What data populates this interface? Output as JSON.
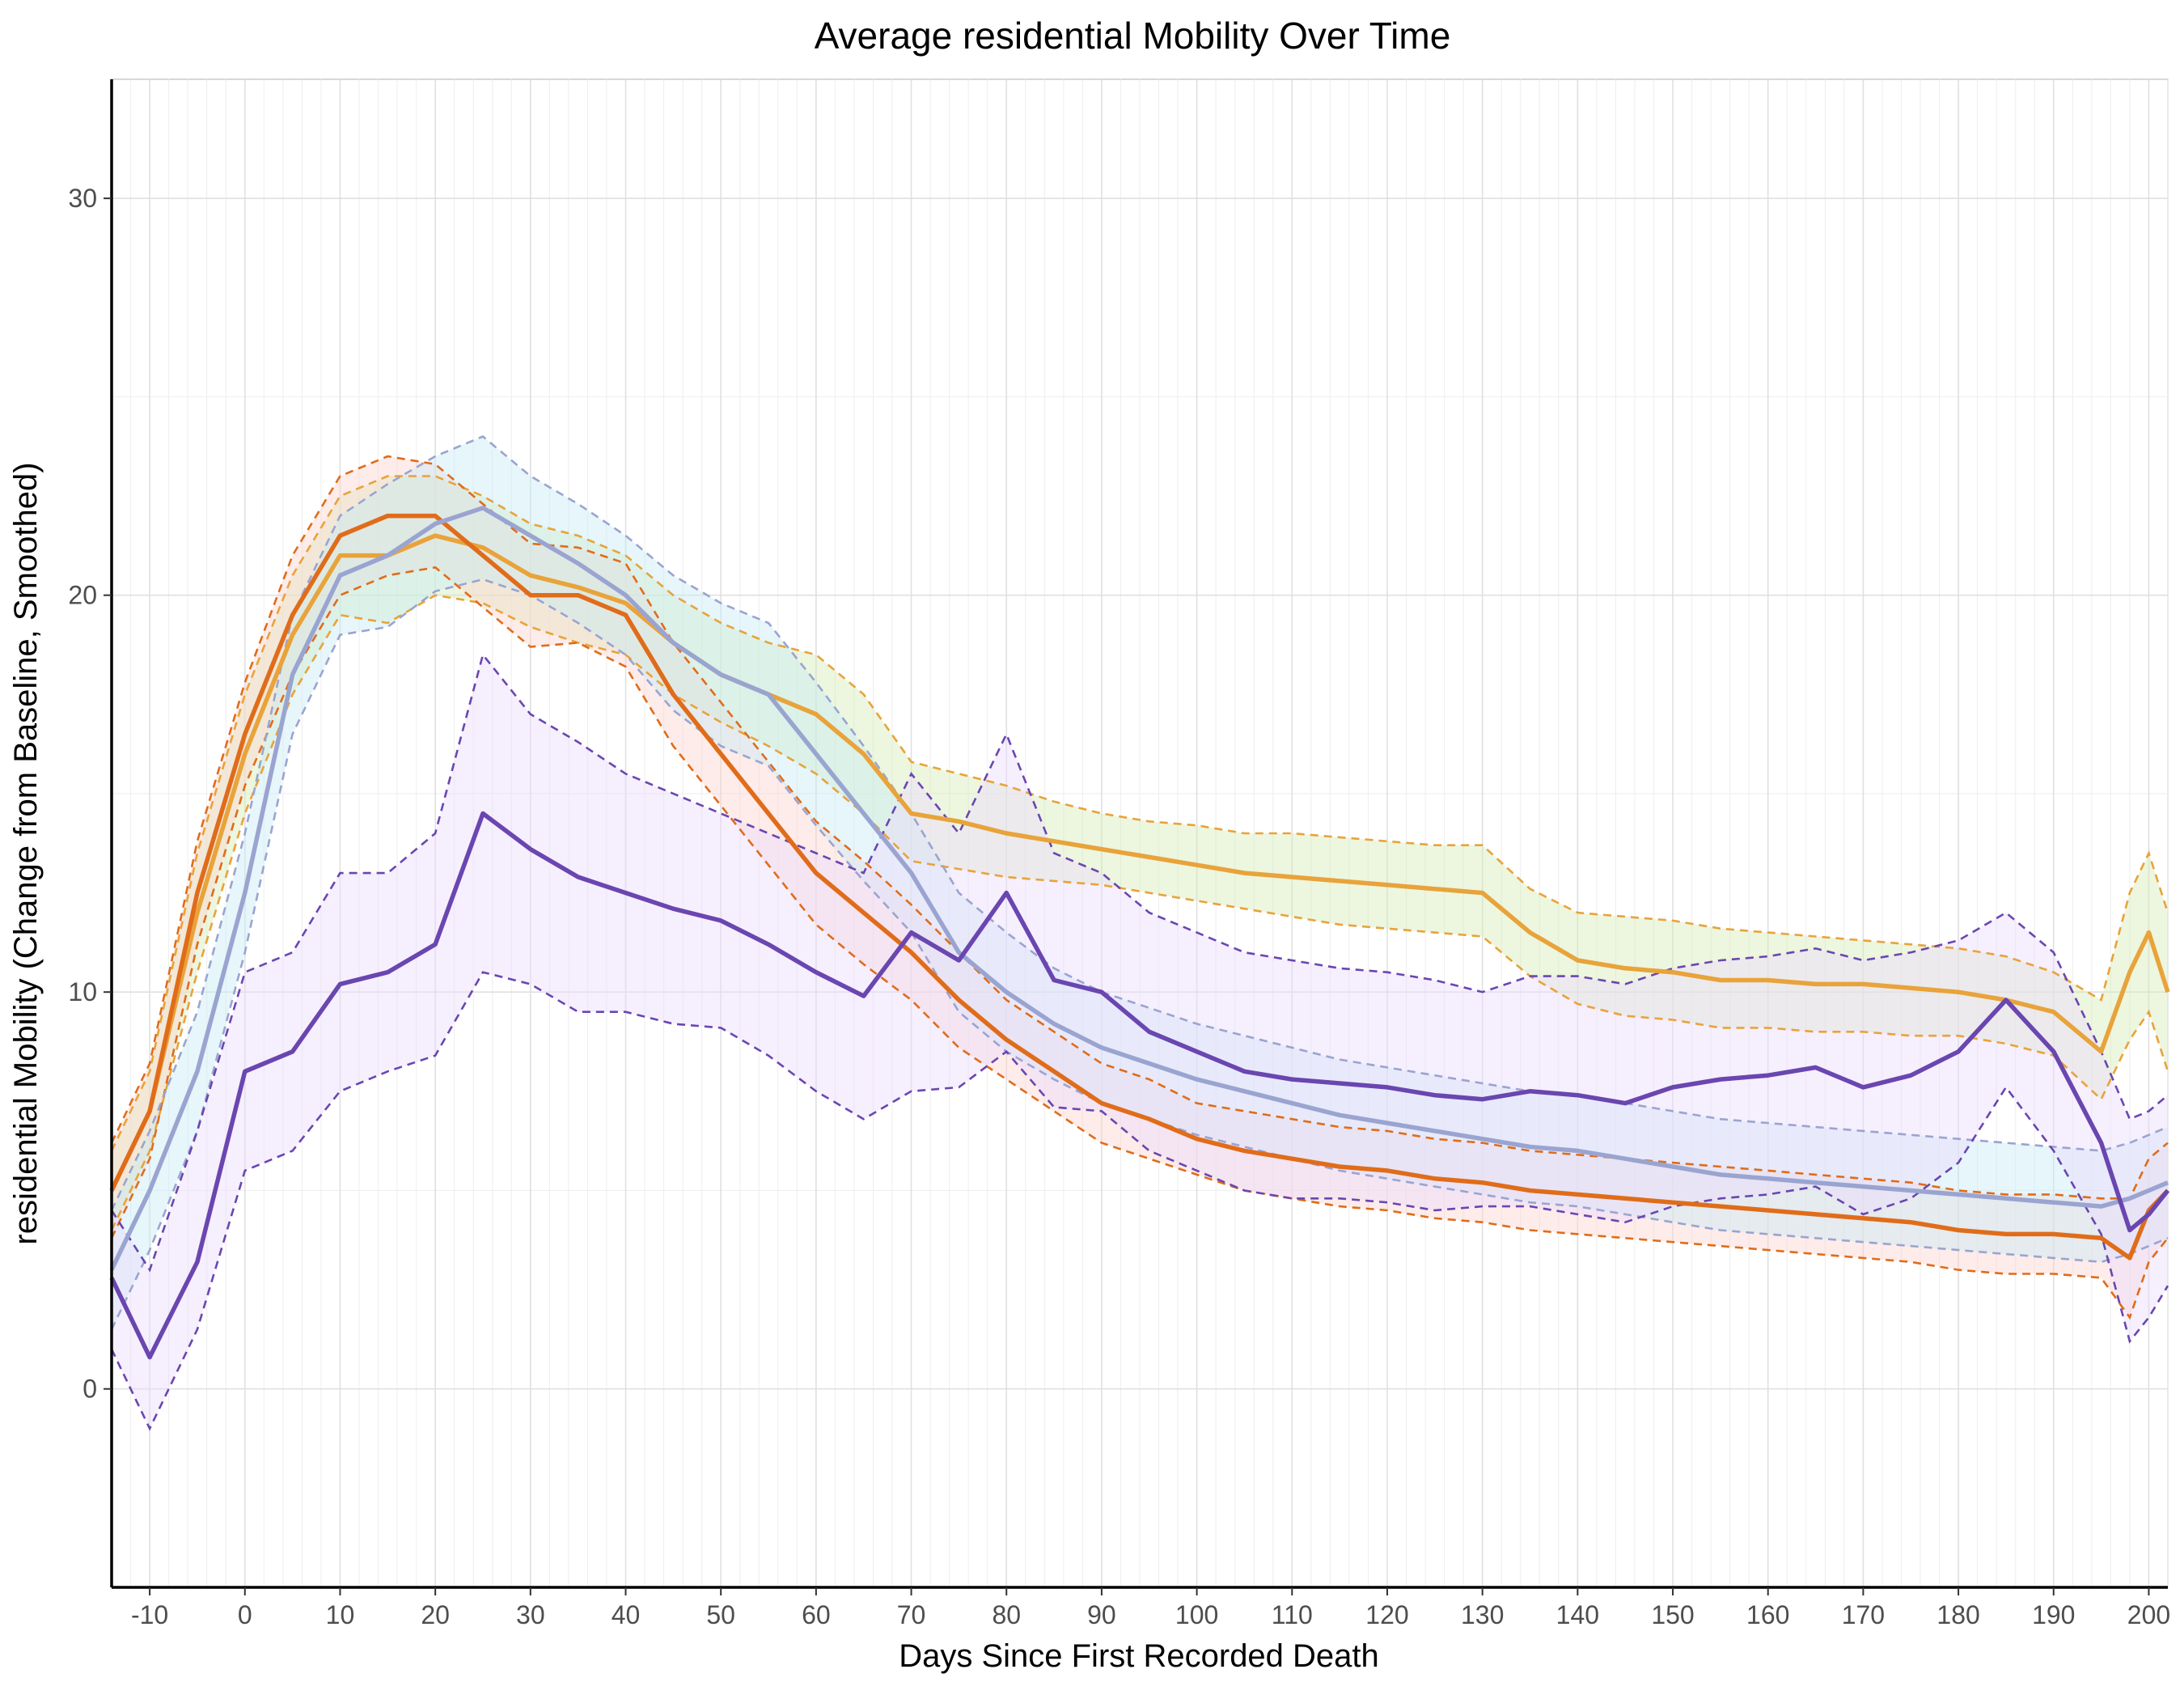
{
  "chart_data": {
    "type": "line",
    "title": "Average residential Mobility Over Time",
    "xlabel": "Days Since First Recorded Death",
    "ylabel": "residential Mobility (Change from Baseline, Smoothed)",
    "xlim": [
      -14,
      202
    ],
    "ylim": [
      -5,
      33
    ],
    "x_ticks": [
      -10,
      0,
      10,
      20,
      30,
      40,
      50,
      60,
      70,
      80,
      90,
      100,
      110,
      120,
      130,
      140,
      150,
      160,
      170,
      180,
      190,
      200
    ],
    "x_tick_labels": [
      "-10",
      "0",
      "10",
      "20",
      "30",
      "40",
      "50",
      "60",
      "70",
      "80",
      "90",
      "100",
      "110",
      "120",
      "130",
      "140",
      "150",
      "160",
      "170",
      "180",
      "190",
      "200"
    ],
    "y_ticks": [
      0,
      10,
      20,
      30
    ],
    "y_tick_labels": [
      "0",
      "10",
      "20",
      "30"
    ],
    "grid": true,
    "legend": "none",
    "series": [
      {
        "color": "#e8a33a",
        "band_fill": "#d8ecb8",
        "x": [
          -14,
          -10,
          -5,
          0,
          5,
          10,
          15,
          20,
          25,
          30,
          35,
          40,
          45,
          50,
          55,
          60,
          65,
          70,
          75,
          80,
          85,
          90,
          95,
          100,
          105,
          110,
          115,
          120,
          125,
          130,
          135,
          140,
          145,
          150,
          155,
          160,
          165,
          170,
          175,
          180,
          185,
          190,
          195,
          198,
          200,
          202
        ],
        "mean": [
          5.0,
          7.0,
          12.0,
          16.0,
          19.0,
          21.0,
          21.0,
          21.5,
          21.2,
          20.5,
          20.2,
          19.8,
          18.8,
          18.0,
          17.5,
          17.0,
          16.0,
          14.5,
          14.3,
          14.0,
          13.8,
          13.6,
          13.4,
          13.2,
          13.0,
          12.9,
          12.8,
          12.7,
          12.6,
          12.5,
          11.5,
          10.8,
          10.6,
          10.5,
          10.3,
          10.3,
          10.2,
          10.2,
          10.1,
          10.0,
          9.8,
          9.5,
          8.5,
          10.5,
          11.5,
          10.0
        ],
        "upper": [
          6.0,
          8.0,
          13.5,
          17.5,
          20.5,
          22.5,
          23.0,
          23.0,
          22.5,
          21.8,
          21.5,
          21.0,
          20.0,
          19.3,
          18.8,
          18.5,
          17.5,
          15.8,
          15.5,
          15.2,
          14.8,
          14.5,
          14.3,
          14.2,
          14.0,
          14.0,
          13.9,
          13.8,
          13.7,
          13.7,
          12.6,
          12.0,
          11.9,
          11.8,
          11.6,
          11.5,
          11.4,
          11.3,
          11.2,
          11.1,
          10.9,
          10.5,
          9.8,
          12.5,
          13.5,
          12.0
        ],
        "lower": [
          4.0,
          6.0,
          10.5,
          14.5,
          17.5,
          19.5,
          19.3,
          20.0,
          19.8,
          19.2,
          18.8,
          18.5,
          17.5,
          16.8,
          16.2,
          15.5,
          14.5,
          13.3,
          13.1,
          12.9,
          12.8,
          12.7,
          12.5,
          12.3,
          12.1,
          11.9,
          11.7,
          11.6,
          11.5,
          11.4,
          10.4,
          9.7,
          9.4,
          9.3,
          9.1,
          9.1,
          9.0,
          9.0,
          8.9,
          8.9,
          8.7,
          8.4,
          7.3,
          8.8,
          9.5,
          8.0
        ]
      },
      {
        "color": "#e06c1a",
        "band_fill": "#fbd5cf",
        "x": [
          -14,
          -10,
          -5,
          0,
          5,
          10,
          15,
          20,
          25,
          30,
          35,
          40,
          45,
          50,
          55,
          60,
          65,
          70,
          75,
          80,
          85,
          90,
          95,
          100,
          105,
          110,
          115,
          120,
          125,
          130,
          135,
          140,
          145,
          150,
          155,
          160,
          165,
          170,
          175,
          180,
          185,
          190,
          195,
          198,
          200,
          202
        ],
        "mean": [
          5.0,
          7.0,
          12.5,
          16.5,
          19.5,
          21.5,
          22.0,
          22.0,
          21.0,
          20.0,
          20.0,
          19.5,
          17.5,
          16.0,
          14.5,
          13.0,
          12.0,
          11.0,
          9.8,
          8.8,
          8.0,
          7.2,
          6.8,
          6.3,
          6.0,
          5.8,
          5.6,
          5.5,
          5.3,
          5.2,
          5.0,
          4.9,
          4.8,
          4.7,
          4.6,
          4.5,
          4.4,
          4.3,
          4.2,
          4.0,
          3.9,
          3.9,
          3.8,
          3.3,
          4.5,
          5.0
        ],
        "upper": [
          6.2,
          8.2,
          13.8,
          17.8,
          21.0,
          23.0,
          23.5,
          23.3,
          22.3,
          21.3,
          21.2,
          20.8,
          18.8,
          17.3,
          15.8,
          14.3,
          13.3,
          12.2,
          11.0,
          9.8,
          9.0,
          8.2,
          7.8,
          7.2,
          7.0,
          6.8,
          6.6,
          6.5,
          6.3,
          6.2,
          6.0,
          5.9,
          5.8,
          5.7,
          5.6,
          5.5,
          5.4,
          5.3,
          5.2,
          5.0,
          4.9,
          4.9,
          4.8,
          4.8,
          5.8,
          6.2
        ],
        "lower": [
          3.8,
          5.8,
          11.2,
          15.2,
          18.0,
          20.0,
          20.5,
          20.7,
          19.7,
          18.7,
          18.8,
          18.2,
          16.2,
          14.7,
          13.2,
          11.7,
          10.7,
          9.8,
          8.6,
          7.8,
          7.0,
          6.2,
          5.8,
          5.4,
          5.0,
          4.8,
          4.6,
          4.5,
          4.3,
          4.2,
          4.0,
          3.9,
          3.8,
          3.7,
          3.6,
          3.5,
          3.4,
          3.3,
          3.2,
          3.0,
          2.9,
          2.9,
          2.8,
          1.8,
          3.2,
          3.8
        ]
      },
      {
        "color": "#9aa4d0",
        "band_fill": "#c7ecf4",
        "x": [
          -14,
          -10,
          -5,
          0,
          5,
          10,
          15,
          20,
          25,
          30,
          35,
          40,
          45,
          50,
          55,
          60,
          65,
          70,
          75,
          80,
          85,
          90,
          95,
          100,
          105,
          110,
          115,
          120,
          125,
          130,
          135,
          140,
          145,
          150,
          155,
          160,
          165,
          170,
          175,
          180,
          185,
          190,
          195,
          198,
          200,
          202
        ],
        "mean": [
          3.0,
          5.0,
          8.0,
          12.5,
          18.0,
          20.5,
          21.0,
          21.8,
          22.2,
          21.5,
          20.8,
          20.0,
          18.8,
          18.0,
          17.5,
          16.0,
          14.5,
          13.0,
          11.0,
          10.0,
          9.2,
          8.6,
          8.2,
          7.8,
          7.5,
          7.2,
          6.9,
          6.7,
          6.5,
          6.3,
          6.1,
          6.0,
          5.8,
          5.6,
          5.4,
          5.3,
          5.2,
          5.1,
          5.0,
          4.9,
          4.8,
          4.7,
          4.6,
          4.8,
          5.0,
          5.2
        ],
        "upper": [
          4.5,
          6.5,
          9.5,
          14.0,
          19.5,
          22.0,
          22.8,
          23.5,
          24.0,
          23.0,
          22.3,
          21.5,
          20.5,
          19.8,
          19.3,
          17.8,
          16.2,
          14.5,
          12.5,
          11.5,
          10.6,
          10.0,
          9.6,
          9.2,
          8.9,
          8.6,
          8.3,
          8.1,
          7.9,
          7.7,
          7.5,
          7.4,
          7.2,
          7.0,
          6.8,
          6.7,
          6.6,
          6.5,
          6.4,
          6.3,
          6.2,
          6.1,
          6.0,
          6.2,
          6.4,
          6.6
        ],
        "lower": [
          1.5,
          3.5,
          6.5,
          11.0,
          16.5,
          19.0,
          19.2,
          20.1,
          20.4,
          20.0,
          19.3,
          18.5,
          17.1,
          16.2,
          15.7,
          14.2,
          12.8,
          11.5,
          9.5,
          8.5,
          7.8,
          7.2,
          6.8,
          6.4,
          6.1,
          5.8,
          5.5,
          5.3,
          5.1,
          4.9,
          4.7,
          4.6,
          4.4,
          4.2,
          4.0,
          3.9,
          3.8,
          3.7,
          3.6,
          3.5,
          3.4,
          3.3,
          3.2,
          3.4,
          3.6,
          3.8
        ]
      },
      {
        "color": "#6a46b0",
        "band_fill": "#ecdcfc",
        "x": [
          -14,
          -10,
          -5,
          0,
          5,
          10,
          15,
          20,
          25,
          30,
          35,
          40,
          45,
          50,
          55,
          60,
          65,
          70,
          75,
          80,
          85,
          90,
          95,
          100,
          105,
          110,
          115,
          120,
          125,
          130,
          135,
          140,
          145,
          150,
          155,
          160,
          165,
          170,
          175,
          180,
          185,
          190,
          195,
          198,
          200,
          202
        ],
        "mean": [
          2.8,
          0.8,
          3.2,
          8.0,
          8.5,
          10.2,
          10.5,
          11.2,
          14.5,
          13.6,
          12.9,
          12.5,
          12.1,
          11.8,
          11.2,
          10.5,
          9.9,
          11.5,
          10.8,
          12.5,
          10.3,
          10.0,
          9.0,
          8.5,
          8.0,
          7.8,
          7.7,
          7.6,
          7.4,
          7.3,
          7.5,
          7.4,
          7.2,
          7.6,
          7.8,
          7.9,
          8.1,
          7.6,
          7.9,
          8.5,
          9.8,
          8.5,
          6.2,
          4.0,
          4.4,
          5.0
        ],
        "upper": [
          4.5,
          3.0,
          6.5,
          10.5,
          11.0,
          13.0,
          13.0,
          14.0,
          18.5,
          17.0,
          16.3,
          15.5,
          15.0,
          14.5,
          14.0,
          13.5,
          13.0,
          15.5,
          14.0,
          16.5,
          13.5,
          13.0,
          12.0,
          11.5,
          11.0,
          10.8,
          10.6,
          10.5,
          10.3,
          10.0,
          10.4,
          10.4,
          10.2,
          10.6,
          10.8,
          10.9,
          11.1,
          10.8,
          11.0,
          11.3,
          12.0,
          11.0,
          8.5,
          6.8,
          7.0,
          7.4
        ],
        "lower": [
          1.0,
          -1.0,
          1.5,
          5.5,
          6.0,
          7.5,
          8.0,
          8.4,
          10.5,
          10.2,
          9.5,
          9.5,
          9.2,
          9.1,
          8.4,
          7.5,
          6.8,
          7.5,
          7.6,
          8.5,
          7.1,
          7.0,
          6.0,
          5.5,
          5.0,
          4.8,
          4.8,
          4.7,
          4.5,
          4.6,
          4.6,
          4.4,
          4.2,
          4.6,
          4.8,
          4.9,
          5.1,
          4.4,
          4.8,
          5.7,
          7.6,
          6.0,
          3.9,
          1.2,
          1.8,
          2.6
        ]
      }
    ]
  }
}
